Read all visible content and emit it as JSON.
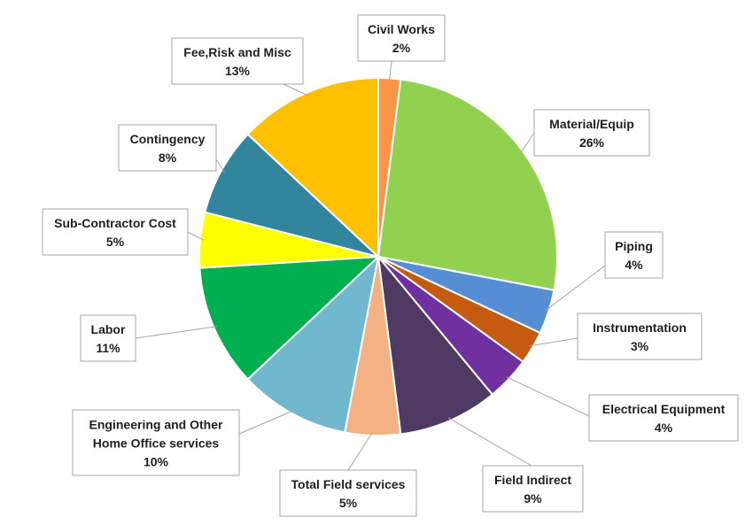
{
  "chart_data": {
    "type": "pie",
    "title": "",
    "slices": [
      {
        "label": "Civil Works",
        "pct_label": "2%",
        "value": 2,
        "color": "#F79646"
      },
      {
        "label": "Material/Equip",
        "pct_label": "26%",
        "value": 26,
        "color": "#92D050"
      },
      {
        "label": "Piping",
        "pct_label": "4%",
        "value": 4,
        "color": "#558ED5"
      },
      {
        "label": "Instrumentation",
        "pct_label": "3%",
        "value": 3,
        "color": "#C55A11"
      },
      {
        "label": "Electrical Equipment",
        "pct_label": "4%",
        "value": 4,
        "color": "#7030A0"
      },
      {
        "label": "Field Indirect",
        "pct_label": "9%",
        "value": 9,
        "color": "#4F3A63"
      },
      {
        "label": "Total Field services",
        "pct_label": "5%",
        "value": 5,
        "color": "#F4B183"
      },
      {
        "label": "Engineering and Other Home Office services",
        "pct_label": "10%",
        "value": 10,
        "color": "#6FB8CE"
      },
      {
        "label": "Labor",
        "pct_label": "11%",
        "value": 11,
        "color": "#00B050"
      },
      {
        "label": "Sub-Contractor Cost",
        "pct_label": "5%",
        "value": 5,
        "color": "#FFFF00"
      },
      {
        "label": "Contingency",
        "pct_label": "8%",
        "value": 8,
        "color": "#31859C"
      },
      {
        "label": "Fee,Risk and Misc",
        "pct_label": "13%",
        "value": 13,
        "color": "#FFC000"
      }
    ]
  }
}
